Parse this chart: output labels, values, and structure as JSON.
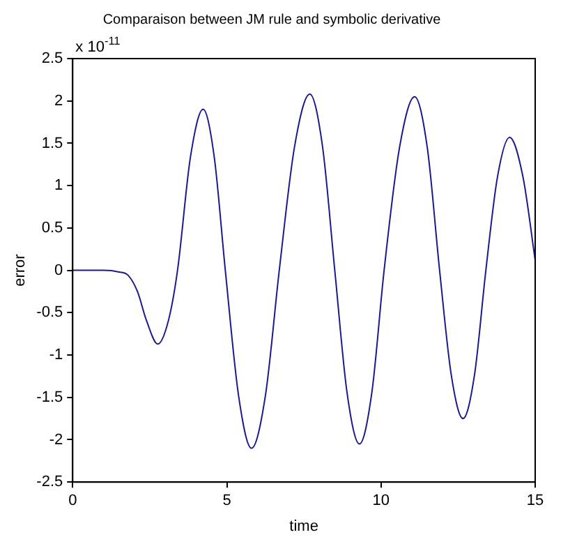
{
  "chart_data": {
    "type": "line",
    "title": "Comparaison between JM rule and symbolic derivative",
    "xlabel": "time",
    "ylabel": "error",
    "annotations": [
      "x 10$^{-11}$"
    ],
    "x": [
      0,
      1,
      1.5,
      1.8,
      2.1,
      2.4,
      2.76,
      3.1,
      3.4,
      3.82,
      4.23,
      4.59,
      4.95,
      5.38,
      5.8,
      6.25,
      6.7,
      7.2,
      7.69,
      8.1,
      8.5,
      8.9,
      9.3,
      9.7,
      10.1,
      10.6,
      11.09,
      11.5,
      11.9,
      12.28,
      12.66,
      13.03,
      13.4,
      13.78,
      14.17,
      14.6,
      15
    ],
    "series": [
      {
        "color": "#1a1a8c",
        "values": [
          0,
          0,
          -0.02,
          -0.06,
          -0.25,
          -0.6,
          -0.87,
          -0.6,
          0,
          1.34,
          1.9,
          1.34,
          0,
          -1.48,
          -2.1,
          -1.48,
          0,
          1.47,
          2.08,
          1.47,
          0,
          -1.45,
          -2.05,
          -1.45,
          0,
          1.45,
          2.05,
          1.45,
          0,
          -1.24,
          -1.75,
          -1.24,
          0,
          1.11,
          1.57,
          1.11,
          0.12
        ]
      }
    ],
    "xlim": [
      0,
      15
    ],
    "xticks": [
      0,
      5,
      10,
      15
    ],
    "ylim": [
      -2.5,
      2.5
    ],
    "yticks": [
      -2.5,
      -2,
      -1.5,
      -1,
      -0.5,
      0,
      0.5,
      1,
      1.5,
      2,
      2.5
    ],
    "grid": false,
    "legend": false,
    "marker": "none",
    "line_style": "solid"
  }
}
